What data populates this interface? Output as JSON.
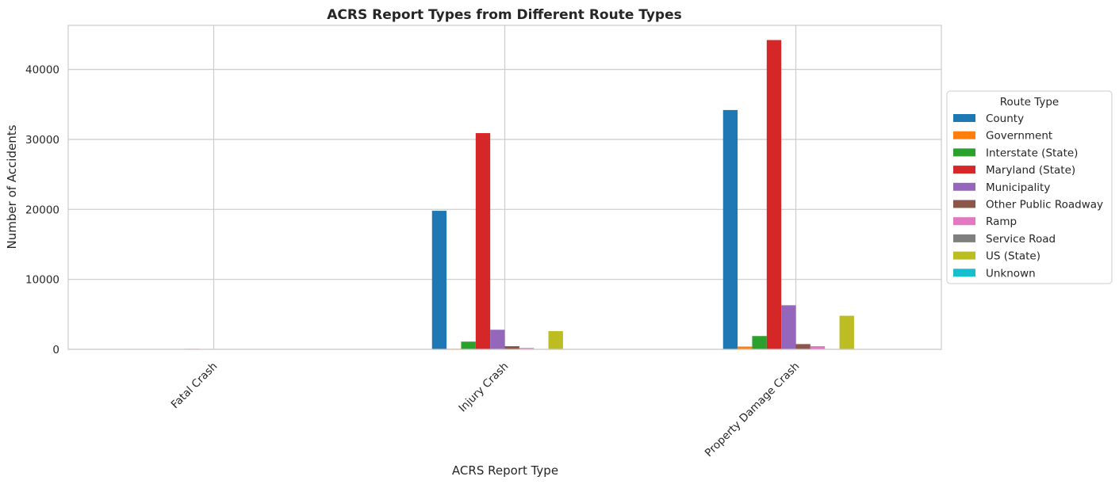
{
  "chart_data": {
    "type": "bar",
    "title": "ACRS Report Types from Different Route Types",
    "xlabel": "ACRS Report Type",
    "ylabel": "Number of Accidents",
    "categories": [
      "Fatal Crash",
      "Injury Crash",
      "Property Damage Crash"
    ],
    "ylim": [
      0,
      46300
    ],
    "yticks": [
      0,
      10000,
      20000,
      30000,
      40000
    ],
    "grid": true,
    "legend": {
      "title": "Route Type",
      "placement": "outside-right"
    },
    "series": [
      {
        "name": "County",
        "color": "#1f77b4",
        "values": [
          40,
          19800,
          34200
        ]
      },
      {
        "name": "Government",
        "color": "#ff7f0e",
        "values": [
          0,
          80,
          400
        ]
      },
      {
        "name": "Interstate (State)",
        "color": "#2ca02c",
        "values": [
          10,
          1100,
          1900
        ]
      },
      {
        "name": "Maryland (State)",
        "color": "#d62728",
        "values": [
          70,
          30900,
          44200
        ]
      },
      {
        "name": "Municipality",
        "color": "#9467bd",
        "values": [
          5,
          2800,
          6300
        ]
      },
      {
        "name": "Other Public Roadway",
        "color": "#8c564b",
        "values": [
          2,
          450,
          750
        ]
      },
      {
        "name": "Ramp",
        "color": "#e377c2",
        "values": [
          1,
          200,
          450
        ]
      },
      {
        "name": "Service Road",
        "color": "#7f7f7f",
        "values": [
          0,
          20,
          60
        ]
      },
      {
        "name": "US (State)",
        "color": "#bcbd22",
        "values": [
          8,
          2600,
          4800
        ]
      },
      {
        "name": "Unknown",
        "color": "#17becf",
        "values": [
          0,
          5,
          20
        ]
      }
    ]
  }
}
